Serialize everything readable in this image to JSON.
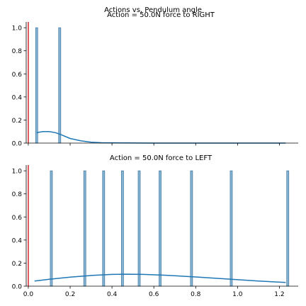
{
  "figure": {
    "suptitle": "Actions vs. Pendulum angle"
  },
  "chart_data": [
    {
      "type": "bar",
      "title": "Action = 50.0N force to RIGHT",
      "xlabel": "",
      "ylabel": "",
      "xlim": [
        -0.01,
        1.29
      ],
      "ylim": [
        0,
        1.05
      ],
      "y_ticks": [
        "0.0",
        "0.2",
        "0.4",
        "0.6",
        "0.8",
        "1.0"
      ],
      "x_ticks": [],
      "grid": false,
      "bins_x": [
        0.04,
        0.15
      ],
      "bins_height": [
        1,
        1
      ],
      "kde": {
        "x": [
          0.04,
          0.07,
          0.1,
          0.13,
          0.16,
          0.2,
          0.25,
          0.3,
          0.35,
          0.45,
          0.6,
          0.8,
          1.0,
          1.23
        ],
        "y": [
          0.09,
          0.1,
          0.1,
          0.09,
          0.07,
          0.04,
          0.02,
          0.008,
          0.003,
          0.001,
          0.0,
          0.0,
          0.0,
          0.0
        ]
      },
      "vline_x": 0.0,
      "colors": {
        "bar": "#86b4d3",
        "bar_edge": "#4a7fa8",
        "kde": "#1f77b4",
        "vline": "#d62728"
      }
    },
    {
      "type": "bar",
      "title": "Action = 50.0N force to LEFT",
      "xlabel": "",
      "ylabel": "",
      "xlim": [
        -0.01,
        1.29
      ],
      "ylim": [
        0,
        1.05
      ],
      "y_ticks": [
        "0.0",
        "0.2",
        "0.4",
        "0.6",
        "0.8",
        "1.0"
      ],
      "x_ticks": [
        "0.0",
        "0.2",
        "0.4",
        "0.6",
        "0.8",
        "1.0",
        "1.2"
      ],
      "grid": false,
      "bins_x": [
        0.11,
        0.27,
        0.36,
        0.45,
        0.53,
        0.63,
        0.78,
        0.97,
        1.24
      ],
      "bins_height": [
        1,
        1,
        1,
        1,
        1,
        1,
        1,
        1,
        1
      ],
      "kde": {
        "x": [
          0.03,
          0.1,
          0.2,
          0.3,
          0.4,
          0.47,
          0.55,
          0.65,
          0.8,
          0.95,
          1.1,
          1.23
        ],
        "y": [
          0.045,
          0.06,
          0.078,
          0.093,
          0.102,
          0.104,
          0.102,
          0.095,
          0.08,
          0.062,
          0.045,
          0.032
        ]
      },
      "vline_x": 0.0,
      "colors": {
        "bar": "#86b4d3",
        "bar_edge": "#4a7fa8",
        "kde": "#1f77b4",
        "vline": "#d62728"
      }
    }
  ]
}
